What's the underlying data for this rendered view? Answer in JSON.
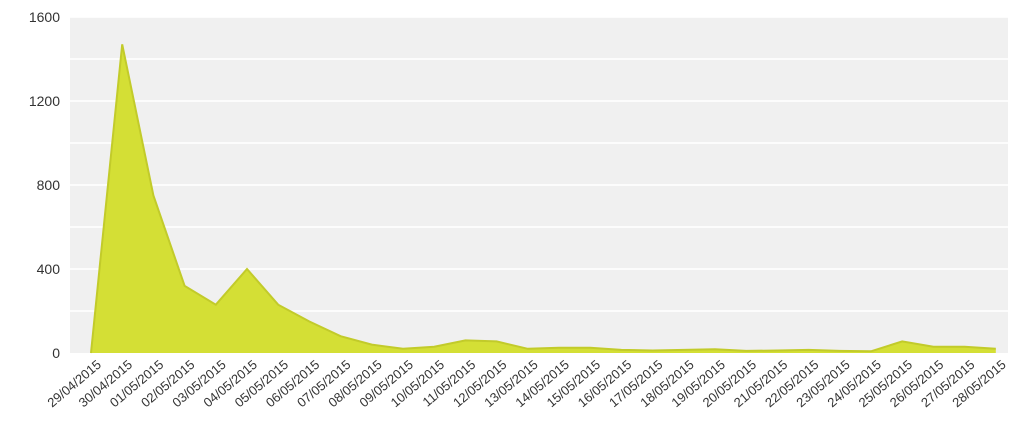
{
  "chart_data": {
    "type": "area",
    "title": "",
    "xlabel": "",
    "ylabel": "",
    "ylim": [
      0,
      1600
    ],
    "yticks": [
      0,
      400,
      800,
      1200,
      1600
    ],
    "grid": true,
    "legend": "none",
    "x": [
      "29/04/2015",
      "30/04/2015",
      "01/05/2015",
      "02/05/2015",
      "03/05/2015",
      "04/05/2015",
      "05/05/2015",
      "06/05/2015",
      "07/05/2015",
      "08/05/2015",
      "09/05/2015",
      "10/05/2015",
      "11/05/2015",
      "12/05/2015",
      "13/05/2015",
      "14/05/2015",
      "15/05/2015",
      "16/05/2015",
      "17/05/2015",
      "18/05/2015",
      "19/05/2015",
      "20/05/2015",
      "21/05/2015",
      "22/05/2015",
      "23/05/2015",
      "24/05/2015",
      "25/05/2015",
      "26/05/2015",
      "27/05/2015",
      "28/05/2015"
    ],
    "series": [
      {
        "values": [
          0,
          1470,
          750,
          320,
          230,
          400,
          230,
          150,
          80,
          40,
          20,
          30,
          60,
          55,
          20,
          25,
          25,
          15,
          12,
          15,
          18,
          10,
          12,
          15,
          10,
          8,
          55,
          30,
          30,
          20
        ],
        "color": "#d4df35",
        "line_color": "#c2cb2a"
      }
    ],
    "plot_background": "#f0f0f0",
    "grid_color": "#ffffff"
  }
}
